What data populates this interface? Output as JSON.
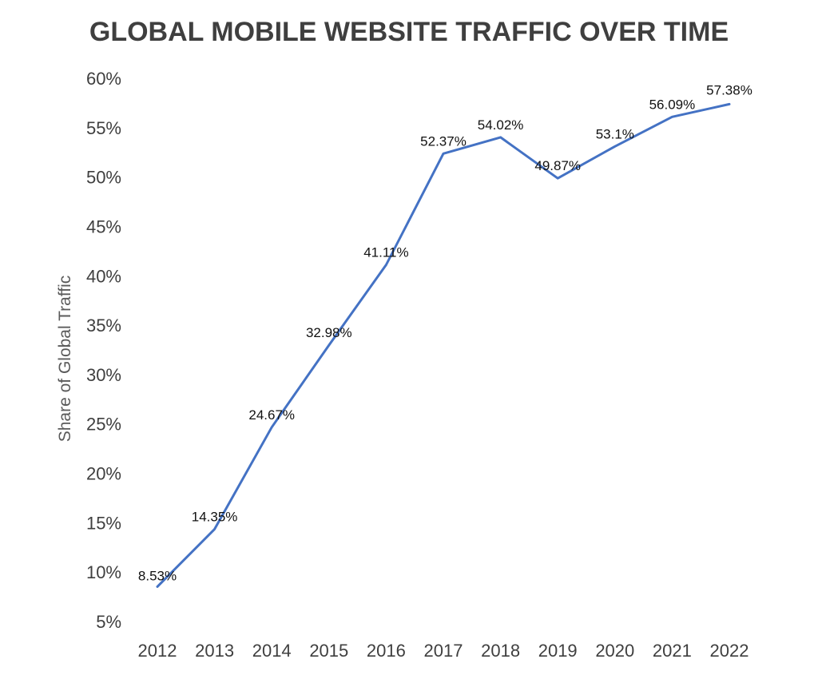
{
  "chart_data": {
    "type": "line",
    "title": "GLOBAL MOBILE WEBSITE TRAFFIC OVER TIME",
    "xlabel": "",
    "ylabel": "Share of Global Traffic",
    "categories": [
      "2012",
      "2013",
      "2014",
      "2015",
      "2016",
      "2017",
      "2018",
      "2019",
      "2020",
      "2021",
      "2022"
    ],
    "values": [
      8.53,
      14.35,
      24.67,
      32.98,
      41.11,
      52.37,
      54.02,
      49.87,
      53.1,
      56.09,
      57.38
    ],
    "value_labels": [
      "8.53%",
      "14.35%",
      "24.67%",
      "32.98%",
      "41.11%",
      "52.37%",
      "54.02%",
      "49.87%",
      "53.1%",
      "56.09%",
      "57.38%"
    ],
    "ylim": [
      5,
      60
    ],
    "yticks": [
      5,
      10,
      15,
      20,
      25,
      30,
      35,
      40,
      45,
      50,
      55,
      60
    ],
    "ytick_labels": [
      "5%",
      "10%",
      "15%",
      "20%",
      "25%",
      "30%",
      "35%",
      "40%",
      "45%",
      "50%",
      "55%",
      "60%"
    ],
    "grid": false,
    "line_color": "#4472c4"
  }
}
